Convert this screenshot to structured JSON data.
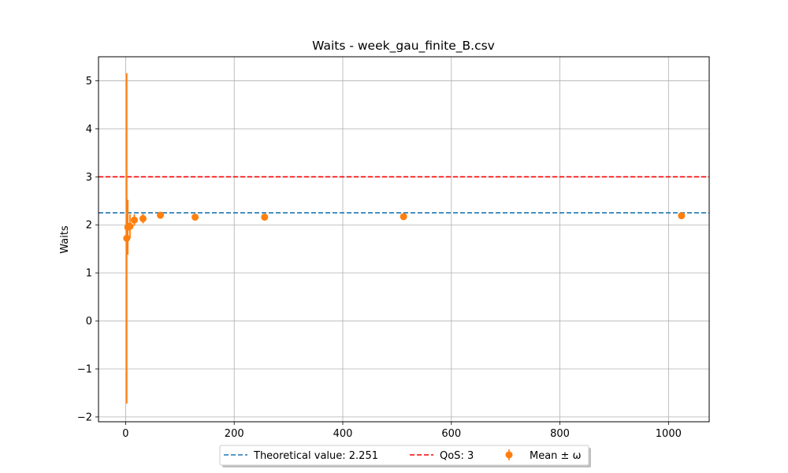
{
  "chart_data": {
    "type": "scatter",
    "title": "Waits - week_gau_finite_B.csv",
    "xlabel": "",
    "ylabel": "Waits",
    "xlim": [
      -50,
      1075
    ],
    "ylim": [
      -2.1,
      5.5
    ],
    "xticks": [
      0,
      200,
      400,
      600,
      800,
      1000
    ],
    "yticks": [
      -2,
      -1,
      0,
      1,
      2,
      3,
      4,
      5
    ],
    "ytick_labels": [
      "−2",
      "−1",
      "0",
      "1",
      "2",
      "3",
      "4",
      "5"
    ],
    "grid": true,
    "legend_position": "bottom-center",
    "series": [
      {
        "name": "Mean ± ω",
        "kind": "errorbar",
        "color": "#ff7f0e",
        "x": [
          2,
          4,
          8,
          16,
          32,
          64,
          128,
          256,
          512,
          1024
        ],
        "y": [
          1.72,
          1.95,
          1.97,
          2.1,
          2.13,
          2.2,
          2.16,
          2.16,
          2.17,
          2.19
        ],
        "err": [
          3.44,
          0.57,
          0.25,
          0.12,
          0.1,
          0.06,
          0.04,
          0.03,
          0.03,
          0.03
        ]
      }
    ],
    "hlines": [
      {
        "name": "Theoretical value: 2.251",
        "y": 2.251,
        "color": "#1f77b4",
        "style": "dashed"
      },
      {
        "name": "QoS: 3",
        "y": 3,
        "color": "#ff0000",
        "style": "dashed"
      }
    ]
  }
}
